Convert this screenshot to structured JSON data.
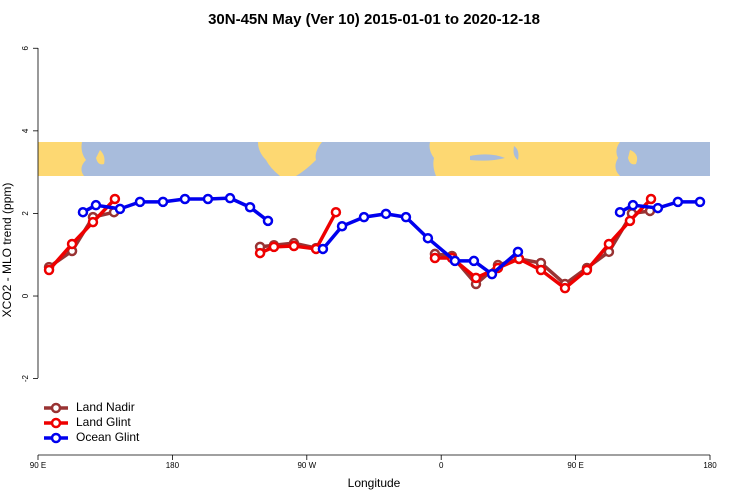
{
  "chart_data": {
    "type": "line",
    "title": "30N-45N May (Ver 10)   2015-01-01 to 2020-12-18",
    "x_label": "Longitude",
    "y_label": "XCO2 - MLO trend (ppm)",
    "xlim": [
      90,
      540
    ],
    "ylim": [
      -3.85,
      6.2
    ],
    "xticks": [
      {
        "value": 90,
        "label": "90 E"
      },
      180,
      {
        "value": 270,
        "label": "90 W"
      },
      {
        "value": 360,
        "label": "0"
      },
      {
        "value": 450,
        "label": "90 E"
      },
      {
        "value": 540,
        "label": "180"
      }
    ],
    "yticks": [
      -2,
      0,
      2,
      4,
      6
    ],
    "legend": "bottom-left",
    "series": [
      {
        "name": "Land Nadir",
        "color": "#993333",
        "x": [
          97.4,
          112.8,
          126.8,
          140.9,
          null,
          238.7,
          248,
          261.4,
          276.2,
          null,
          355.8,
          367.2,
          383.3,
          398,
          412.1,
          426.8,
          442.9,
          457.6,
          472.3,
          487.7,
          499.8
        ],
        "values": [
          0.7,
          1.09,
          1.91,
          2.03,
          null,
          1.19,
          1.23,
          1.28,
          1.16,
          null,
          1.02,
          0.97,
          0.29,
          0.75,
          0.9,
          0.8,
          0.29,
          0.68,
          1.07,
          2.0,
          2.06
        ]
      },
      {
        "name": "Land Glint",
        "color": "#ee0000",
        "x": [
          97.4,
          112.8,
          126.8,
          141.5,
          null,
          238.7,
          248,
          261.4,
          276.2,
          289.5,
          null,
          355.8,
          367.2,
          383.3,
          398,
          412.1,
          426.8,
          442.9,
          457.6,
          472.3,
          486.4,
          500.5
        ],
        "values": [
          0.63,
          1.26,
          1.79,
          2.35,
          null,
          1.04,
          1.19,
          1.21,
          1.14,
          2.03,
          null,
          0.92,
          0.92,
          0.44,
          0.68,
          0.9,
          0.63,
          0.19,
          0.63,
          1.26,
          1.82,
          2.35
        ]
      },
      {
        "name": "Ocean Glint",
        "color": "#0000ee",
        "x": [
          120.1,
          128.8,
          144.9,
          158.3,
          173.7,
          188.4,
          203.8,
          218.6,
          232,
          244,
          null,
          280.8,
          293.6,
          308.3,
          323,
          336.4,
          351.1,
          369.2,
          381.9,
          394,
          411.4,
          null,
          479.7,
          488.4,
          505.1,
          518.5,
          533.3
        ],
        "values": [
          2.03,
          2.2,
          2.11,
          2.28,
          2.28,
          2.35,
          2.35,
          2.37,
          2.15,
          1.82,
          null,
          1.14,
          1.69,
          1.91,
          1.99,
          1.91,
          1.4,
          0.85,
          0.85,
          0.53,
          1.07,
          null,
          2.03,
          2.2,
          2.13,
          2.28,
          2.28
        ]
      }
    ]
  }
}
